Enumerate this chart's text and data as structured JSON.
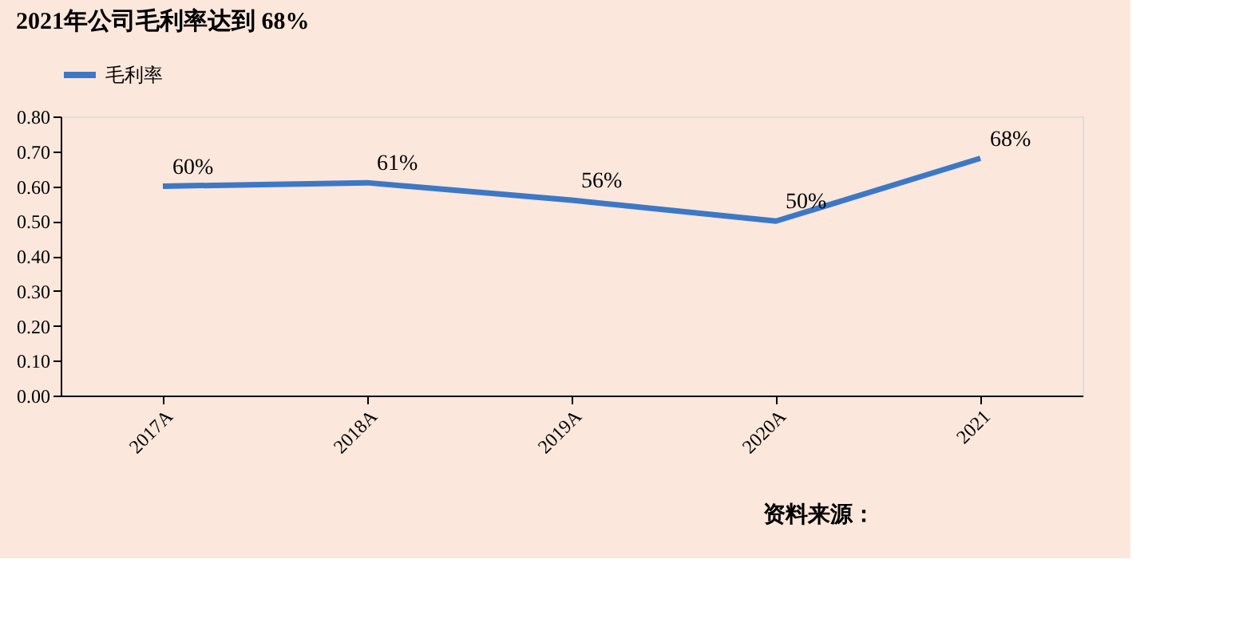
{
  "chart_data": {
    "type": "line",
    "title": "2021年公司毛利率达到 68%",
    "categories": [
      "2017A",
      "2018A",
      "2019A",
      "2020A",
      "2021"
    ],
    "series": [
      {
        "name": "毛利率",
        "color": "#3d78c6",
        "values": [
          0.6,
          0.61,
          0.56,
          0.5,
          0.68
        ],
        "value_labels": [
          "60%",
          "61%",
          "56%",
          "50%",
          "68%"
        ]
      }
    ],
    "ylim": [
      0,
      0.8
    ],
    "yticks": [
      {
        "value": 0,
        "label": "0.00"
      },
      {
        "value": 0.1,
        "label": "0.10"
      },
      {
        "value": 0.2,
        "label": "0.20"
      },
      {
        "value": 0.3,
        "label": "0.30"
      },
      {
        "value": 0.4,
        "label": "0.40"
      },
      {
        "value": 0.5,
        "label": "0.50"
      },
      {
        "value": 0.6,
        "label": "0.60"
      },
      {
        "value": 0.7,
        "label": "0.70"
      },
      {
        "value": 0.8,
        "label": "0.80"
      }
    ],
    "legend": "top",
    "grid": false,
    "marker": "none",
    "annotations": [
      "资料来源："
    ]
  }
}
